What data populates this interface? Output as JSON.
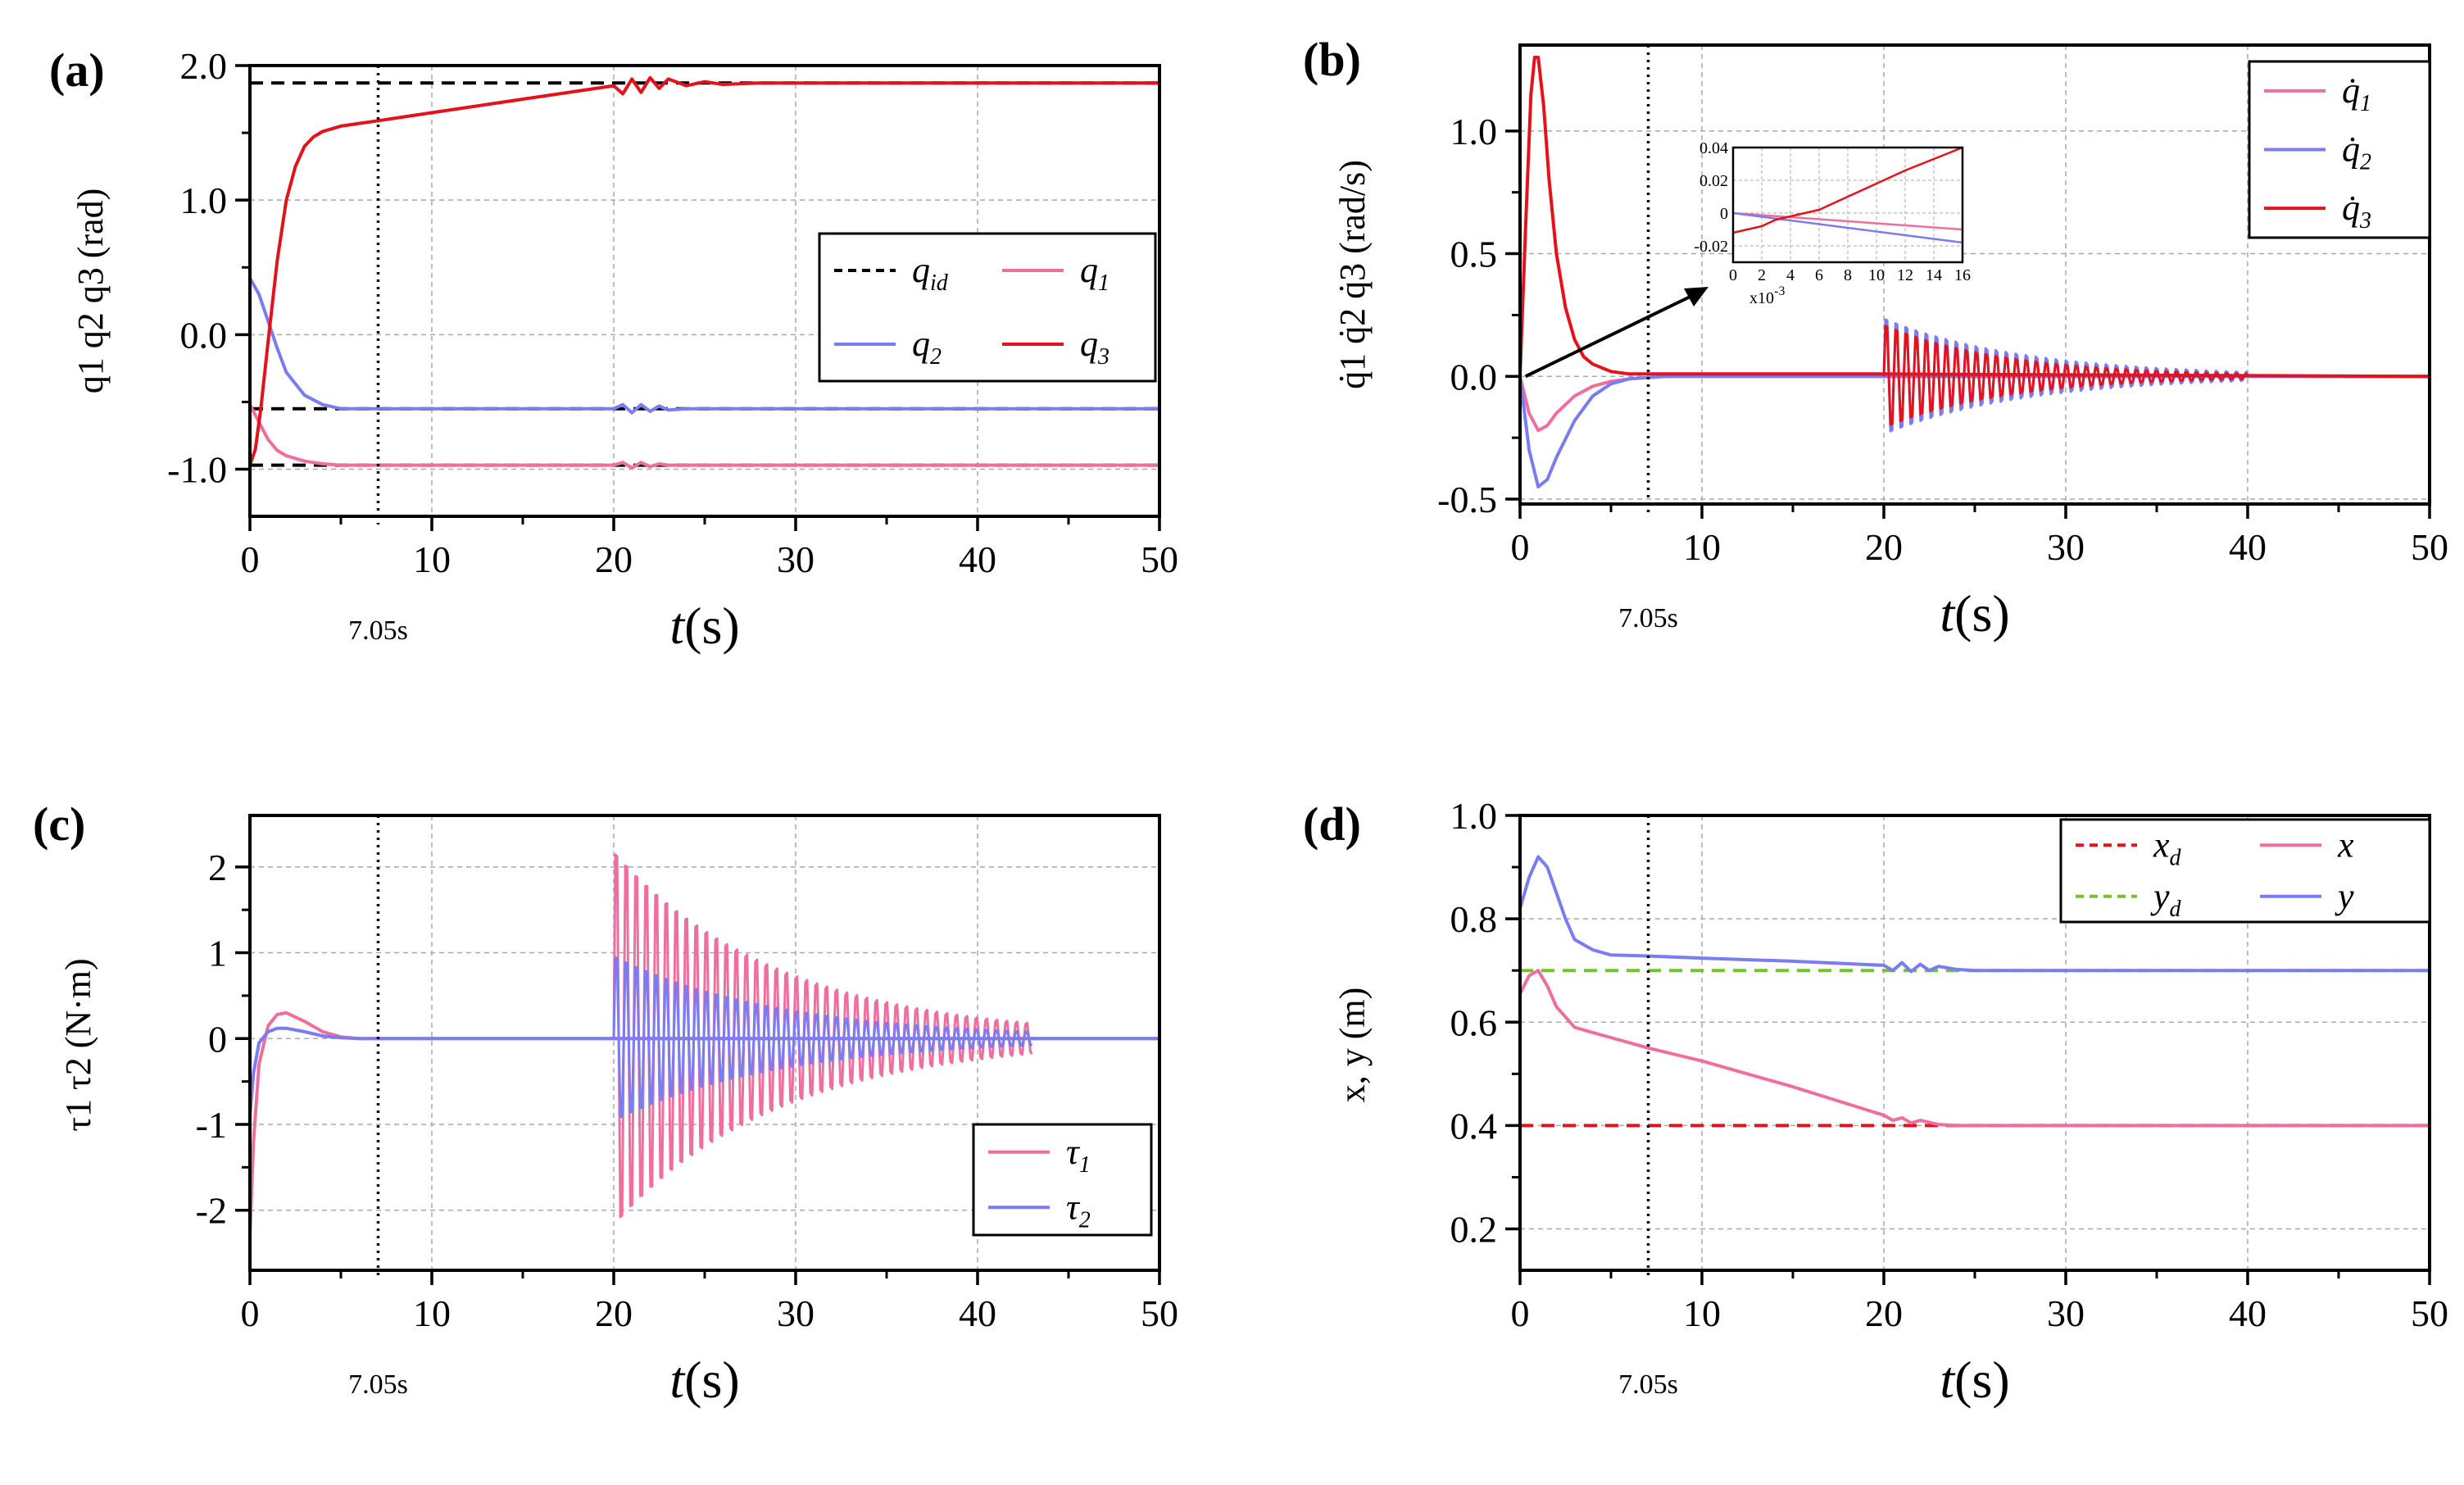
{
  "colors": {
    "pink": "#ee6f9e",
    "blue": "#7b7bf2",
    "red": "#e3121c",
    "black": "#000000",
    "green": "#70c52a",
    "grid": "#a8a8a8"
  },
  "chart_data": [
    {
      "panel": "(a)",
      "type": "line",
      "xlabel_var": "t",
      "xlabel_unit": "(s)",
      "ylabel": "q1 q2 q3 (rad)",
      "xlim": [
        0,
        50
      ],
      "ylim": [
        -1.35,
        2.0
      ],
      "xticks": [
        0,
        10,
        20,
        30,
        40,
        50
      ],
      "ytick_labels": [
        "2.0",
        "1.0",
        "0.0",
        "-1.0"
      ],
      "grid": true,
      "vline": {
        "x": 7.05,
        "label": "7.05s"
      },
      "legend": {
        "position": "right",
        "entries": [
          "q_id",
          "q_1",
          "q_2",
          "q_3"
        ]
      },
      "series": [
        {
          "name": "q_id",
          "color": "#000000",
          "dashed": true,
          "x": [
            0,
            50
          ],
          "y": [
            1.87,
            1.87
          ]
        },
        {
          "name": "q_id",
          "color": "#000000",
          "dashed": true,
          "x": [
            0,
            50
          ],
          "y": [
            -0.55,
            -0.55
          ]
        },
        {
          "name": "q_id",
          "color": "#000000",
          "dashed": true,
          "x": [
            0,
            50
          ],
          "y": [
            -0.97,
            -0.97
          ]
        },
        {
          "name": "q_1",
          "color": "#ee6f9e",
          "x": [
            0,
            0.5,
            1,
            1.5,
            2,
            3,
            4,
            5,
            6,
            20,
            20.5,
            21,
            21.5,
            22,
            22.5,
            23,
            24,
            50
          ],
          "y": [
            -0.52,
            -0.65,
            -0.78,
            -0.86,
            -0.9,
            -0.94,
            -0.96,
            -0.97,
            -0.97,
            -0.97,
            -0.95,
            -0.99,
            -0.95,
            -0.98,
            -0.96,
            -0.97,
            -0.97,
            -0.97
          ]
        },
        {
          "name": "q_2",
          "color": "#7b7bf2",
          "x": [
            0,
            0.5,
            1,
            1.5,
            2,
            3,
            4,
            5,
            6,
            20,
            20.5,
            21,
            21.5,
            22,
            22.5,
            23,
            24,
            50
          ],
          "y": [
            0.42,
            0.3,
            0.1,
            -0.1,
            -0.28,
            -0.45,
            -0.52,
            -0.55,
            -0.55,
            -0.55,
            -0.52,
            -0.58,
            -0.52,
            -0.57,
            -0.53,
            -0.56,
            -0.55,
            -0.55
          ]
        },
        {
          "name": "q_3",
          "color": "#e3121c",
          "x": [
            0,
            0.3,
            0.6,
            1,
            1.5,
            2,
            2.5,
            3,
            3.5,
            4,
            5,
            6,
            7.05,
            10,
            15,
            20,
            20.5,
            21,
            21.5,
            22,
            22.5,
            23,
            24,
            25,
            26,
            28,
            50
          ],
          "y": [
            -0.97,
            -0.85,
            -0.55,
            -0.05,
            0.55,
            1.0,
            1.25,
            1.4,
            1.47,
            1.51,
            1.55,
            1.57,
            1.59,
            1.65,
            1.75,
            1.85,
            1.79,
            1.9,
            1.8,
            1.91,
            1.83,
            1.9,
            1.85,
            1.88,
            1.86,
            1.87,
            1.87
          ]
        }
      ]
    },
    {
      "panel": "(b)",
      "type": "line",
      "xlabel_var": "t",
      "xlabel_unit": "(s)",
      "ylabel": "q̇1 q̇2 q̇3 (rad/s)",
      "xlim": [
        0,
        50
      ],
      "ylim": [
        -0.52,
        1.35
      ],
      "xticks": [
        0,
        10,
        20,
        30,
        40,
        50
      ],
      "ytick_labels": [
        "1.0",
        "0.5",
        "0.0",
        "-0.5"
      ],
      "grid": true,
      "vline": {
        "x": 7.05,
        "label": "7.05s"
      },
      "legend": {
        "position": "top-right",
        "entries": [
          "q̇_1",
          "q̇_2",
          "q̇_3"
        ]
      },
      "series": [
        {
          "name": "q̇_1",
          "color": "#ee6f9e",
          "x": [
            0,
            0.5,
            1,
            1.5,
            2,
            3,
            4,
            5,
            6,
            8,
            20,
            50
          ],
          "y": [
            0,
            -0.15,
            -0.22,
            -0.2,
            -0.15,
            -0.08,
            -0.04,
            -0.02,
            -0.01,
            0,
            0,
            0
          ]
        },
        {
          "name": "q̇_2",
          "color": "#7b7bf2",
          "x": [
            0,
            0.5,
            1,
            1.5,
            2,
            3,
            4,
            5,
            6,
            8,
            20,
            50
          ],
          "y": [
            0,
            -0.3,
            -0.45,
            -0.42,
            -0.33,
            -0.18,
            -0.08,
            -0.03,
            -0.01,
            0,
            0,
            0
          ]
        },
        {
          "name": "q̇_3",
          "color": "#e3121c",
          "x": [
            0,
            0.3,
            0.6,
            0.8,
            1,
            1.3,
            1.6,
            2,
            2.5,
            3,
            3.5,
            4,
            5,
            6,
            8,
            20,
            50
          ],
          "y": [
            0,
            0.6,
            1.15,
            1.3,
            1.3,
            1.1,
            0.8,
            0.5,
            0.28,
            0.15,
            0.08,
            0.05,
            0.02,
            0.01,
            0.01,
            0.01,
            0
          ]
        },
        {
          "name": "oscillation",
          "color": "#7b7bf2",
          "oscillation": {
            "t0": 20,
            "t1": 40,
            "amp": 0.27,
            "decay": 7.5,
            "period": 0.55
          }
        },
        {
          "name": "oscillation",
          "color": "#e3121c",
          "oscillation": {
            "t0": 20,
            "t1": 40,
            "amp": 0.24,
            "decay": 6.5,
            "period": 0.55
          }
        }
      ],
      "inset": {
        "xlim": [
          0,
          16
        ],
        "ylim": [
          -0.03,
          0.04
        ],
        "xtick_labels": [
          "0",
          "2",
          "4",
          "6",
          "8",
          "10",
          "12",
          "14",
          "16"
        ],
        "ytick_labels": [
          "0.04",
          "0.02",
          "0",
          "-0.02"
        ],
        "x_multiplier": "x10",
        "x_exponent": "-3",
        "series": [
          {
            "color": "#ee6f9e",
            "x": [
              0,
              16
            ],
            "y": [
              0,
              -0.01
            ]
          },
          {
            "color": "#7b7bf2",
            "x": [
              0,
              16
            ],
            "y": [
              0,
              -0.018
            ]
          },
          {
            "color": "#e3121c",
            "x": [
              0,
              1,
              2,
              3,
              4,
              5,
              6,
              7,
              8,
              10,
              12,
              14,
              16
            ],
            "y": [
              -0.012,
              -0.01,
              -0.008,
              -0.004,
              -0.002,
              0,
              0.002,
              0.006,
              0.01,
              0.018,
              0.026,
              0.033,
              0.04
            ]
          }
        ]
      }
    },
    {
      "panel": "(c)",
      "type": "line",
      "xlabel_var": "t",
      "xlabel_unit": "(s)",
      "ylabel": "τ1 τ2 (N·m)",
      "xlim": [
        0,
        50
      ],
      "ylim": [
        -2.7,
        2.6
      ],
      "xticks": [
        0,
        10,
        20,
        30,
        40,
        50
      ],
      "ytick_labels": [
        "2",
        "1",
        "0",
        "-1",
        "-2"
      ],
      "grid": true,
      "vline": {
        "x": 7.05,
        "label": "7.05s"
      },
      "legend": {
        "position": "bottom-right",
        "entries": [
          "τ_1",
          "τ_2"
        ]
      },
      "series": [
        {
          "name": "τ_1",
          "color": "#ee6f9e",
          "x": [
            0,
            0.2,
            0.5,
            1,
            1.5,
            2,
            3,
            4,
            5,
            6,
            20,
            50
          ],
          "y": [
            -2.3,
            -1.2,
            -0.3,
            0.15,
            0.28,
            0.3,
            0.2,
            0.08,
            0.02,
            0,
            0,
            0
          ]
        },
        {
          "name": "τ_2",
          "color": "#7b7bf2",
          "x": [
            0,
            0.2,
            0.5,
            1,
            1.5,
            2,
            3,
            4,
            5,
            6,
            20,
            50
          ],
          "y": [
            -0.9,
            -0.4,
            -0.05,
            0.08,
            0.12,
            0.12,
            0.08,
            0.03,
            0.01,
            0,
            0,
            0
          ]
        },
        {
          "name": "oscillation",
          "color": "#ee6f9e",
          "oscillation": {
            "t0": 20,
            "t1": 43,
            "amp": 2.5,
            "decay": 9,
            "period": 0.55
          }
        },
        {
          "name": "oscillation",
          "color": "#7b7bf2",
          "oscillation": {
            "t0": 20,
            "t1": 43,
            "amp": 1.1,
            "decay": 9,
            "period": 0.55
          }
        }
      ]
    },
    {
      "panel": "(d)",
      "type": "line",
      "xlabel_var": "t",
      "xlabel_unit": "(s)",
      "ylabel": "x, y (m)",
      "xlim": [
        0,
        50
      ],
      "ylim": [
        0.12,
        1.0
      ],
      "xticks": [
        0,
        10,
        20,
        30,
        40,
        50
      ],
      "ytick_labels": [
        "1.0",
        "0.8",
        "0.6",
        "0.4",
        "0.2"
      ],
      "grid": true,
      "vline": {
        "x": 7.05,
        "label": "7.05s"
      },
      "legend": {
        "position": "top-right",
        "entries": [
          "x_d",
          "x",
          "y_d",
          "y"
        ]
      },
      "series": [
        {
          "name": "x_d",
          "color": "#e3121c",
          "dashed": true,
          "x": [
            0,
            50
          ],
          "y": [
            0.4,
            0.4
          ]
        },
        {
          "name": "y_d",
          "color": "#70c52a",
          "dashed": true,
          "x": [
            0,
            50
          ],
          "y": [
            0.7,
            0.7
          ]
        },
        {
          "name": "x",
          "color": "#ee6f9e",
          "x": [
            0,
            0.5,
            1,
            1.5,
            2,
            3,
            4,
            7.05,
            10,
            15,
            20,
            20.5,
            21,
            21.5,
            22,
            23,
            24,
            50
          ],
          "y": [
            0.655,
            0.69,
            0.7,
            0.67,
            0.63,
            0.59,
            0.58,
            0.55,
            0.525,
            0.475,
            0.42,
            0.41,
            0.415,
            0.405,
            0.41,
            0.402,
            0.4,
            0.4
          ]
        },
        {
          "name": "y",
          "color": "#7b7bf2",
          "x": [
            0,
            0.5,
            1,
            1.5,
            2,
            2.5,
            3,
            4,
            5,
            7.05,
            10,
            15,
            20,
            20.5,
            21,
            21.5,
            22,
            22.5,
            23,
            24,
            25,
            50
          ],
          "y": [
            0.82,
            0.88,
            0.92,
            0.9,
            0.85,
            0.8,
            0.76,
            0.74,
            0.73,
            0.728,
            0.724,
            0.718,
            0.71,
            0.7,
            0.715,
            0.698,
            0.712,
            0.7,
            0.708,
            0.702,
            0.7,
            0.7
          ]
        }
      ]
    }
  ]
}
